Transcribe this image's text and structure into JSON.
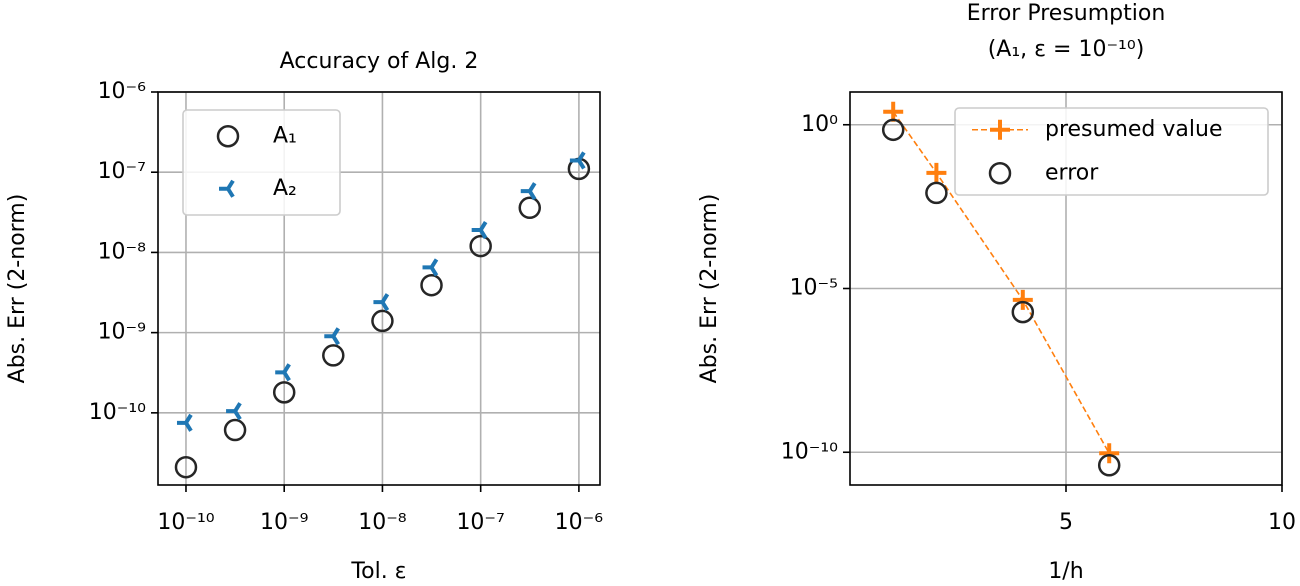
{
  "chart_data": [
    {
      "type": "scatter",
      "title": "Accuracy of Alg. 2",
      "xlabel": "Tol. ε",
      "ylabel": "Abs. Err (2-norm)",
      "xscale": "log",
      "yscale": "log",
      "grid": true,
      "legend": "upper left",
      "x": [
        1e-10,
        3.16e-10,
        1e-09,
        3.16e-09,
        1e-08,
        3.16e-08,
        1e-07,
        3.16e-07,
        1e-06
      ],
      "series": [
        {
          "name": "A₁",
          "color": "#262626",
          "marker": "circle",
          "values": [
            2.1e-11,
            6.1e-11,
            1.8e-10,
            5.2e-10,
            1.4e-09,
            3.9e-09,
            1.2e-08,
            3.6e-08,
            1.1e-07
          ]
        },
        {
          "name": "A₂",
          "color": "#1f77b4",
          "marker": "tri",
          "values": [
            7.5e-11,
            1.05e-10,
            3.2e-10,
            9e-10,
            2.4e-09,
            6.5e-09,
            1.9e-08,
            5.8e-08,
            1.4e-07
          ]
        }
      ],
      "xlim": [
        5.19e-11,
        1.64e-06
      ],
      "ylim": [
        1.26e-11,
        1e-06
      ],
      "xticks": [
        {
          "value": 1e-10,
          "label": "10⁻¹⁰"
        },
        {
          "value": 1e-09,
          "label": "10⁻⁹"
        },
        {
          "value": 1e-08,
          "label": "10⁻⁸"
        },
        {
          "value": 1e-07,
          "label": "10⁻⁷"
        },
        {
          "value": 1e-06,
          "label": "10⁻⁶"
        }
      ],
      "yticks": [
        {
          "value": 1e-10,
          "label": "10⁻¹⁰"
        },
        {
          "value": 1e-09,
          "label": "10⁻⁹"
        },
        {
          "value": 1e-08,
          "label": "10⁻⁸"
        },
        {
          "value": 1e-07,
          "label": "10⁻⁷"
        },
        {
          "value": 1e-06,
          "label": "10⁻⁶"
        }
      ]
    },
    {
      "type": "line",
      "title": "Error Presumption",
      "subtitle": "(A₁, ε = 10⁻¹⁰)",
      "xlabel": "1/h",
      "ylabel": "Abs. Err (2-norm)",
      "xscale": "linear",
      "yscale": "log",
      "grid": true,
      "legend": "upper right",
      "x": [
        1,
        2,
        4,
        6
      ],
      "series": [
        {
          "name": "presumed value",
          "color": "#ff7f0e",
          "marker": "plus",
          "linestyle": "dashed",
          "values": [
            2.5,
            0.034,
            4.5e-06,
            9.3e-11
          ]
        },
        {
          "name": "error",
          "color": "#262626",
          "marker": "circle",
          "linestyle": "none",
          "values": [
            0.7,
            0.0083,
            1.9e-06,
            4e-11
          ]
        }
      ],
      "xlim": [
        0,
        10
      ],
      "ylim": [
        1e-11,
        10
      ],
      "xticks": [
        5,
        10
      ],
      "yticks": [
        {
          "value": 1,
          "label": "10⁰"
        },
        {
          "value": 1e-05,
          "label": "10⁻⁵"
        },
        {
          "value": 1e-10,
          "label": "10⁻¹⁰"
        }
      ]
    }
  ]
}
